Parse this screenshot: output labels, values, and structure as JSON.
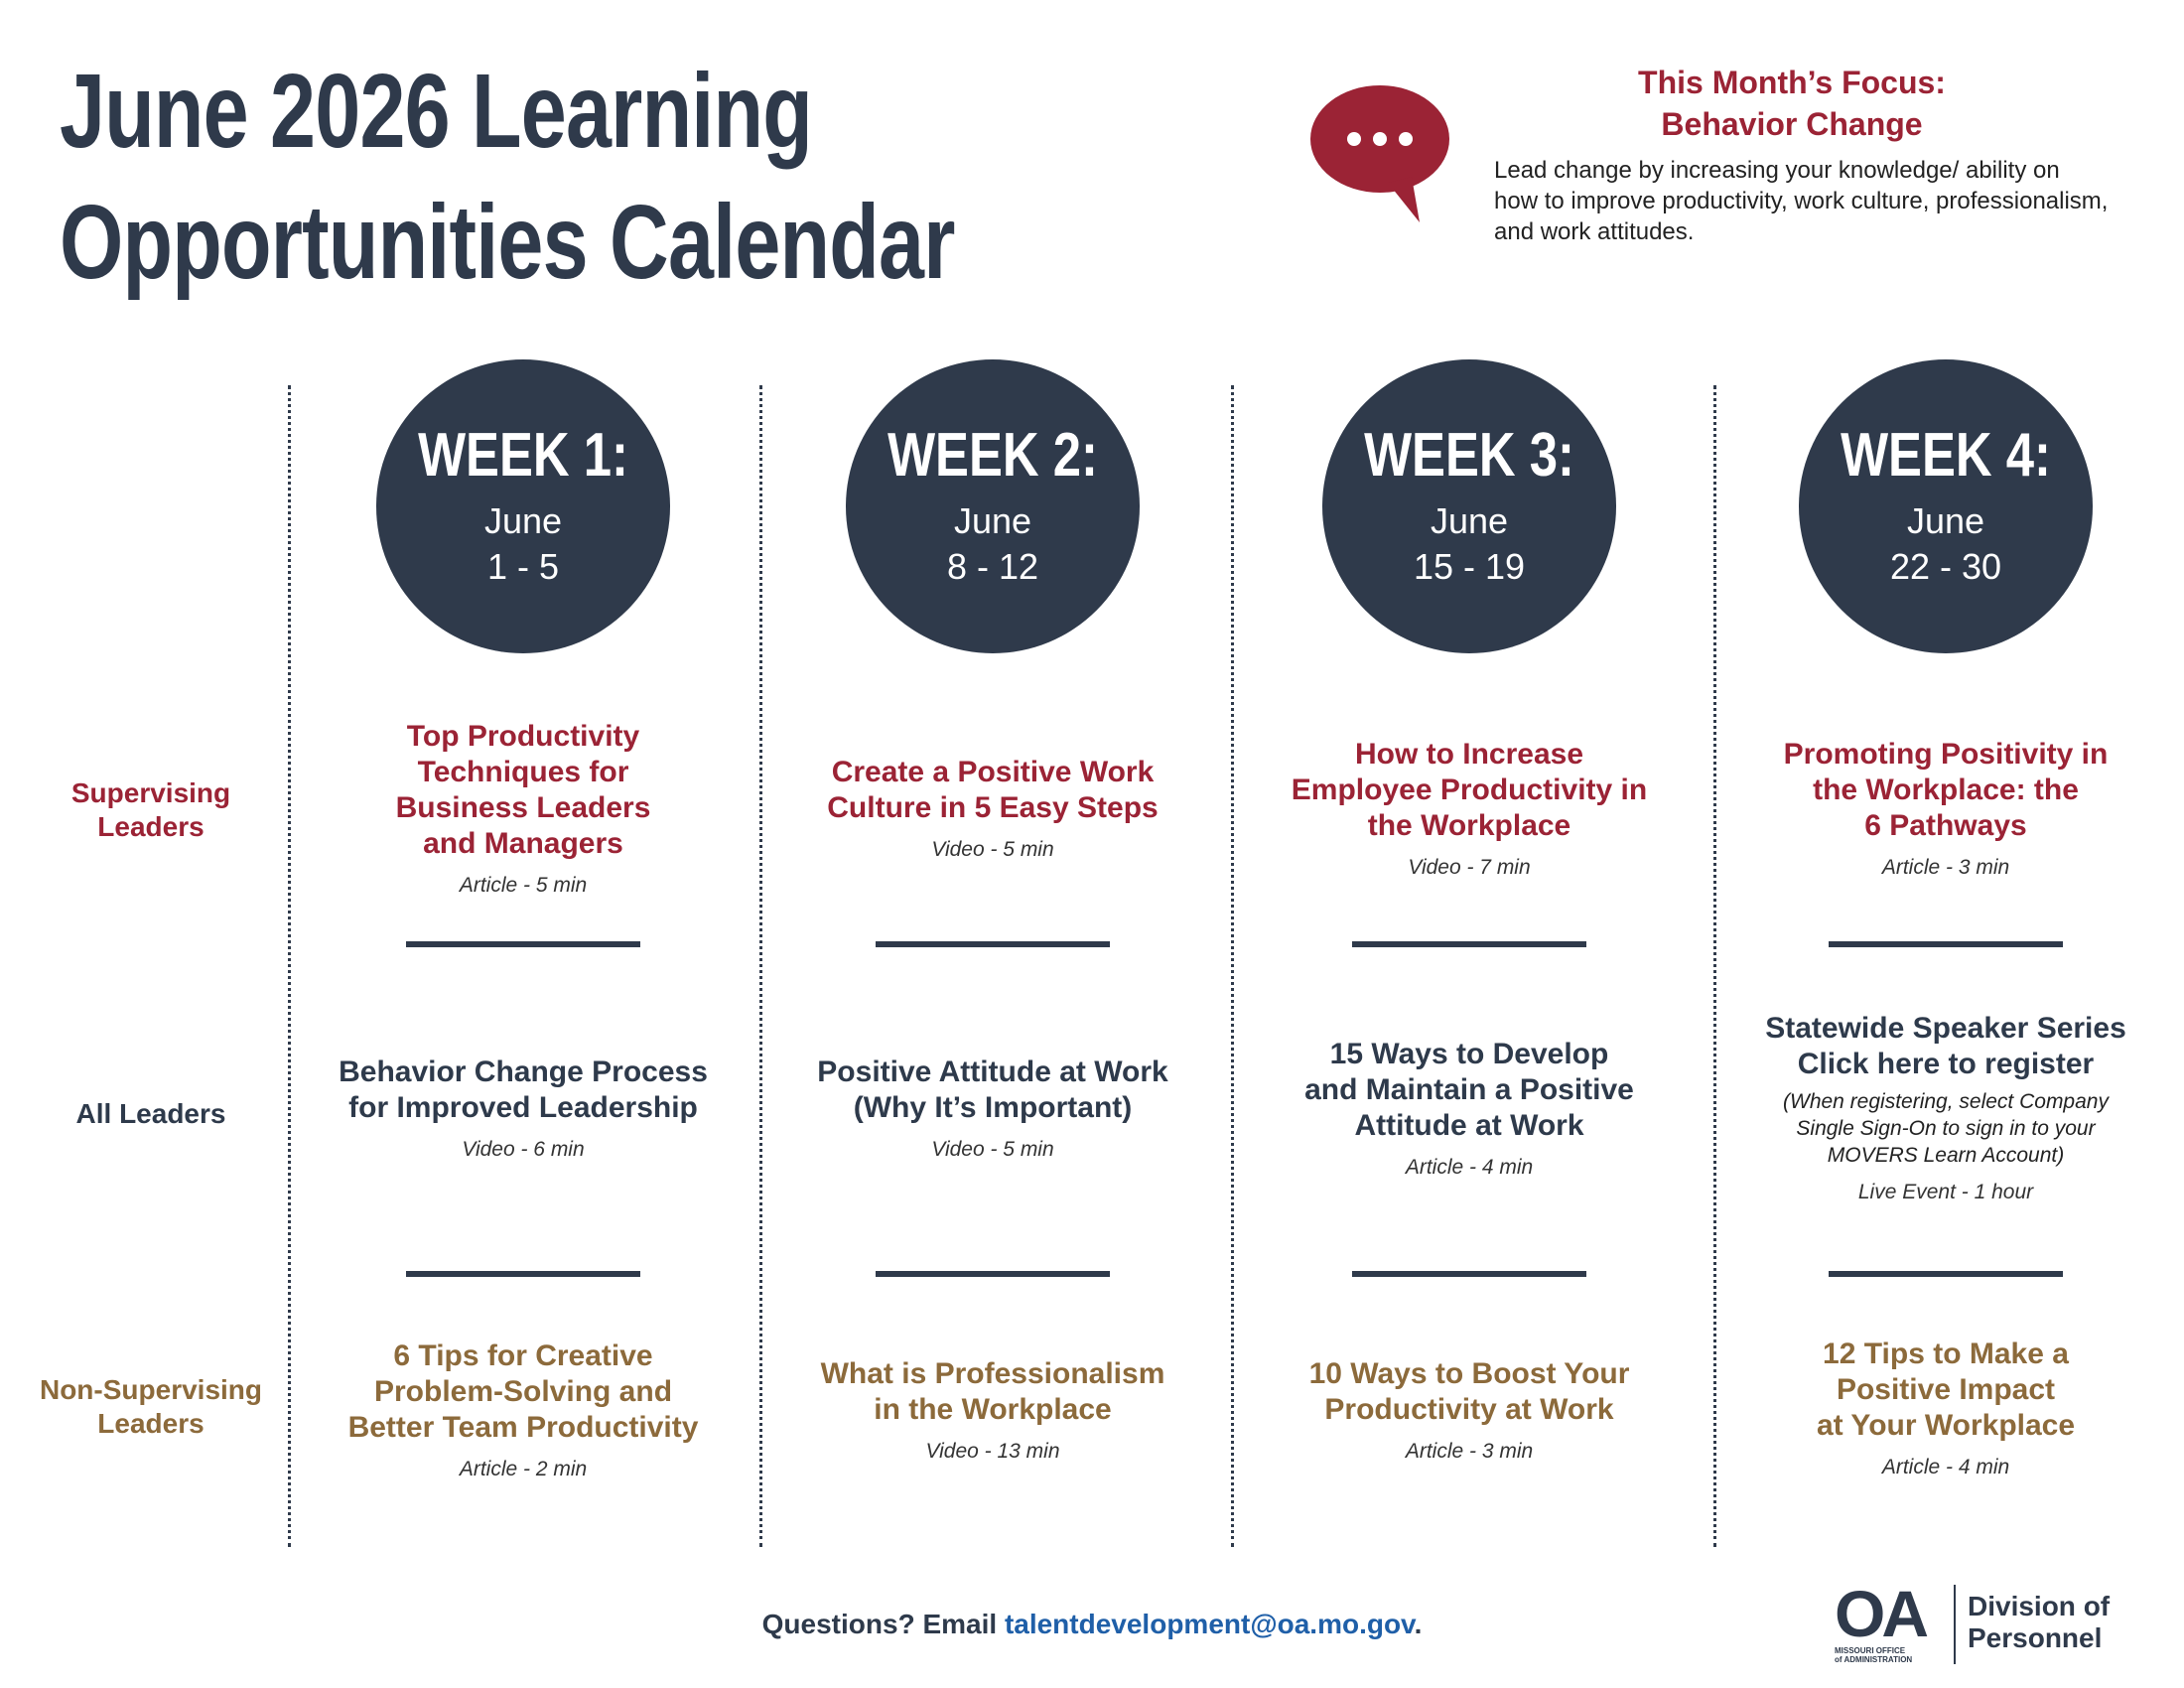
{
  "header": {
    "title_line1": "June 2026 Learning",
    "title_line2": "Opportunities Calendar"
  },
  "focus": {
    "icon": "speech-bubble-icon",
    "heading_line1": "This Month’s Focus:",
    "heading_line2": "Behavior Change",
    "text": "Lead change by increasing your knowledge/ ability on how to improve productivity, work culture, professionalism, and work attitudes."
  },
  "row_labels": {
    "supervising": [
      "Supervising",
      "Leaders"
    ],
    "all": [
      "All Leaders"
    ],
    "non_supervising": [
      "Non-Supervising",
      "Leaders"
    ]
  },
  "weeks": [
    {
      "title": "WEEK 1:",
      "month": "June",
      "dates": "1 - 5",
      "supervising": {
        "title": [
          "Top Productivity",
          "Techniques for",
          "Business Leaders",
          "and Managers"
        ],
        "meta": "Article - 5 min"
      },
      "all": {
        "title": [
          "Behavior Change Process",
          "for Improved Leadership"
        ],
        "meta": "Video - 6 min"
      },
      "non_supervising": {
        "title": [
          "6 Tips for Creative",
          "Problem-Solving and",
          "Better Team Productivity"
        ],
        "meta": "Article - 2 min"
      }
    },
    {
      "title": "WEEK 2:",
      "month": "June",
      "dates": "8 - 12",
      "supervising": {
        "title": [
          "Create a Positive Work",
          "Culture in 5 Easy Steps"
        ],
        "meta": "Video - 5 min"
      },
      "all": {
        "title": [
          "Positive Attitude at Work",
          "(Why It’s Important)"
        ],
        "meta": "Video - 5 min"
      },
      "non_supervising": {
        "title": [
          "What is Professionalism",
          "in the Workplace"
        ],
        "meta": "Video - 13 min"
      }
    },
    {
      "title": "WEEK 3:",
      "month": "June",
      "dates": "15 - 19",
      "supervising": {
        "title": [
          "How to Increase",
          "Employee Productivity in",
          "the Workplace"
        ],
        "meta": "Video - 7 min"
      },
      "all": {
        "title": [
          "15 Ways to Develop",
          "and Maintain a Positive",
          "Attitude at Work"
        ],
        "meta": "Article - 4 min"
      },
      "non_supervising": {
        "title": [
          "10 Ways to Boost Your",
          "Productivity at Work"
        ],
        "meta": "Article - 3 min"
      }
    },
    {
      "title": "WEEK 4:",
      "month": "June",
      "dates": "22 - 30",
      "supervising": {
        "title": [
          "Promoting Positivity in",
          "the Workplace: the",
          "6 Pathways"
        ],
        "meta": "Article - 3 min"
      },
      "all": {
        "title": [
          "Statewide Speaker Series",
          "Click here to register"
        ],
        "note": [
          "(When registering, select Company",
          "Single Sign-On to sign in to your",
          "MOVERS Learn Account)"
        ],
        "meta": "Live Event - 1 hour"
      },
      "non_supervising": {
        "title": [
          "12 Tips to Make a",
          "Positive Impact",
          "at Your Workplace"
        ],
        "meta": "Article - 4 min"
      }
    }
  ],
  "footer": {
    "prefix": "Questions? Email ",
    "email": "talentdevelopment@oa.mo.gov",
    "suffix": "."
  },
  "logo": {
    "mark": "OA",
    "small_line1": "MISSOURI OFFICE",
    "small_line2": "of ADMINISTRATION",
    "division_line1": "Division of",
    "division_line2": "Personnel"
  },
  "colors": {
    "navy": "#2f3a4b",
    "crimson": "#9b2335",
    "gold": "#8c6a3b",
    "link": "#1f5fa8"
  }
}
